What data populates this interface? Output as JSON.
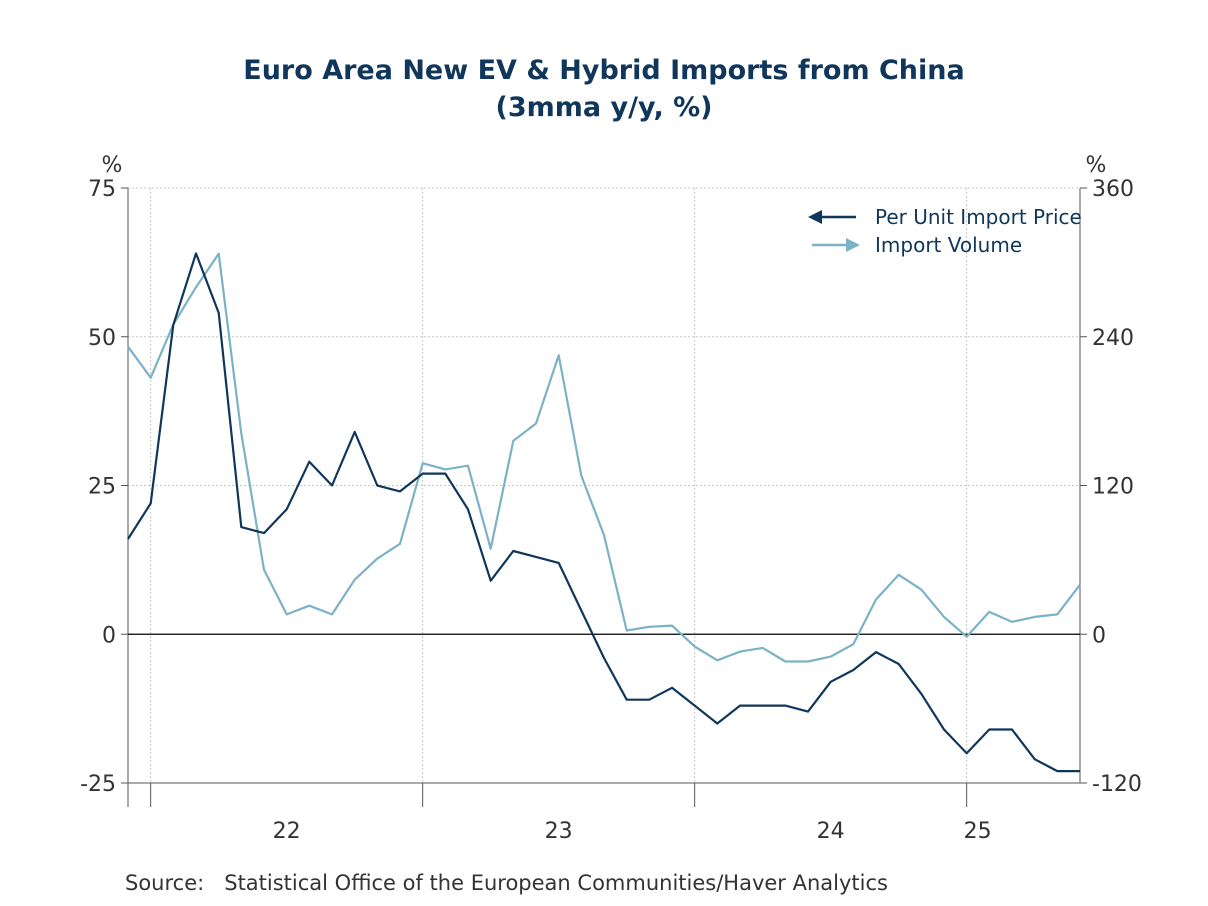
{
  "chart_data": {
    "type": "line",
    "title": "Euro Area New EV & Hybrid Imports from China",
    "subtitle": "(3mma y/y, %)",
    "y_left": {
      "unit_label": "%",
      "ylim": [
        -25,
        75
      ],
      "ticks": [
        75,
        50,
        25,
        0,
        -25
      ]
    },
    "y_right": {
      "unit_label": "%",
      "ylim": [
        -120,
        360
      ],
      "ticks": [
        360,
        240,
        120,
        0,
        -120
      ]
    },
    "x_axis": {
      "start": "2021-12",
      "end": "2025-06",
      "tick_labels": [
        "22",
        "23",
        "24",
        "25"
      ],
      "tick_label_years": [
        2022,
        2023,
        2024,
        2025
      ]
    },
    "grid": true,
    "legend_position": "top-right",
    "series": [
      {
        "name": "Per Unit Import Price",
        "axis": "left",
        "color": "#10375b",
        "marker": "left-arrow",
        "x": [
          "2021-12",
          "2022-01",
          "2022-02",
          "2022-03",
          "2022-04",
          "2022-05",
          "2022-06",
          "2022-07",
          "2022-08",
          "2022-09",
          "2022-10",
          "2022-11",
          "2022-12",
          "2023-01",
          "2023-02",
          "2023-03",
          "2023-04",
          "2023-05",
          "2023-06",
          "2023-07",
          "2023-08",
          "2023-09",
          "2023-10",
          "2023-11",
          "2023-12",
          "2024-01",
          "2024-02",
          "2024-03",
          "2024-04",
          "2024-05",
          "2024-06",
          "2024-07",
          "2024-08",
          "2024-09",
          "2024-10",
          "2024-11",
          "2024-12",
          "2025-01",
          "2025-02",
          "2025-03",
          "2025-04",
          "2025-05",
          "2025-06"
        ],
        "values": [
          16,
          22,
          52,
          64,
          54,
          18,
          17,
          21,
          29,
          25,
          34,
          25,
          24,
          27,
          27,
          21,
          9,
          14,
          13,
          12,
          4,
          -4,
          -11,
          -11,
          -9,
          -12,
          -15,
          -12,
          -12,
          -12,
          -13,
          -8,
          -6,
          -3,
          -5,
          -10,
          -16,
          -20,
          -16,
          -16,
          -21,
          -23,
          -23
        ]
      },
      {
        "name": "Import Volume",
        "axis": "right",
        "color": "#7bb2c7",
        "marker": "right-arrow",
        "x": [
          "2021-12",
          "2022-01",
          "2022-02",
          "2022-03",
          "2022-04",
          "2022-05",
          "2022-06",
          "2022-07",
          "2022-08",
          "2022-09",
          "2022-10",
          "2022-11",
          "2022-12",
          "2023-01",
          "2023-02",
          "2023-03",
          "2023-04",
          "2023-05",
          "2023-06",
          "2023-07",
          "2023-08",
          "2023-09",
          "2023-10",
          "2023-11",
          "2023-12",
          "2024-01",
          "2024-02",
          "2024-03",
          "2024-04",
          "2024-05",
          "2024-06",
          "2024-07",
          "2024-08",
          "2024-09",
          "2024-10",
          "2024-11",
          "2024-12",
          "2025-01",
          "2025-02",
          "2025-03",
          "2025-04",
          "2025-05",
          "2025-06"
        ],
        "values": [
          232,
          207,
          250,
          280,
          307,
          162,
          52,
          16,
          23,
          16,
          44,
          61,
          73,
          138,
          133,
          136,
          69,
          156,
          170,
          225,
          128,
          80,
          3,
          6,
          7,
          -10,
          -21,
          -14,
          -11,
          -22,
          -22,
          -18,
          -8,
          28,
          48,
          36,
          14,
          -2,
          18,
          10,
          14,
          16,
          40
        ]
      }
    ]
  },
  "source": {
    "label": "Source:",
    "text": "Statistical Office of the European Communities/Haver Analytics"
  }
}
